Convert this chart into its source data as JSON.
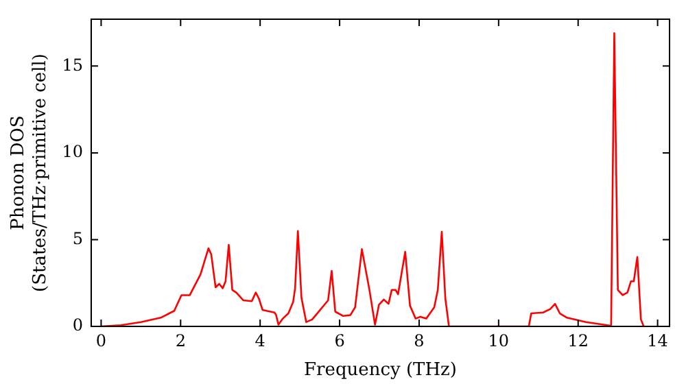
{
  "chart_data": {
    "type": "line",
    "xlabel": "Frequency (THz)",
    "ylabel": "Phonon DOS\n(States/THz·primitive cell)",
    "xlim": [
      -0.25,
      14.3
    ],
    "ylim": [
      0,
      17.7
    ],
    "xticks": [
      0,
      2,
      4,
      6,
      8,
      10,
      12,
      14
    ],
    "yticks": [
      0,
      5,
      10,
      15
    ],
    "grid": false,
    "legend": false,
    "marker": "none",
    "line_style": "solid",
    "series": [
      {
        "color": "#ff0000",
        "x": [
          0,
          0.5,
          1.0,
          1.5,
          1.84,
          2.02,
          2.23,
          2.5,
          2.7,
          2.77,
          2.88,
          2.97,
          3.06,
          3.13,
          3.21,
          3.3,
          3.4,
          3.58,
          3.79,
          3.89,
          3.97,
          4.06,
          4.36,
          4.4,
          4.46,
          4.57,
          4.71,
          4.83,
          4.88,
          4.95,
          5.04,
          5.16,
          5.31,
          5.71,
          5.8,
          5.89,
          6.09,
          6.27,
          6.39,
          6.56,
          6.75,
          6.89,
          6.99,
          7.11,
          7.23,
          7.31,
          7.41,
          7.47,
          7.65,
          7.77,
          7.91,
          8.03,
          8.18,
          8.38,
          8.47,
          8.57,
          8.66,
          8.75,
          10.76,
          10.82,
          11.12,
          11.3,
          11.42,
          11.54,
          11.72,
          12.2,
          12.79,
          12.83,
          12.91,
          13.0,
          13.12,
          13.24,
          13.33,
          13.4,
          13.49,
          13.58,
          13.65
        ],
        "values": [
          0,
          0.07,
          0.25,
          0.5,
          0.9,
          1.8,
          1.8,
          3.0,
          4.5,
          4.15,
          2.25,
          2.45,
          2.2,
          2.6,
          4.7,
          2.1,
          1.95,
          1.5,
          1.45,
          1.95,
          1.6,
          0.95,
          0.8,
          0.67,
          0.1,
          0.45,
          0.75,
          1.4,
          2.2,
          5.5,
          1.65,
          0.25,
          0.4,
          1.5,
          3.2,
          0.85,
          0.6,
          0.65,
          1.1,
          4.45,
          2.1,
          0.1,
          1.25,
          1.55,
          1.3,
          2.1,
          2.1,
          1.85,
          4.3,
          1.2,
          0.45,
          0.55,
          0.45,
          1.1,
          2.1,
          5.45,
          1.6,
          0,
          0,
          0.75,
          0.8,
          1.0,
          1.3,
          0.75,
          0.5,
          0.25,
          0.05,
          0,
          16.9,
          2.1,
          1.8,
          1.95,
          2.6,
          2.6,
          4.0,
          0.4,
          0
        ]
      }
    ]
  }
}
